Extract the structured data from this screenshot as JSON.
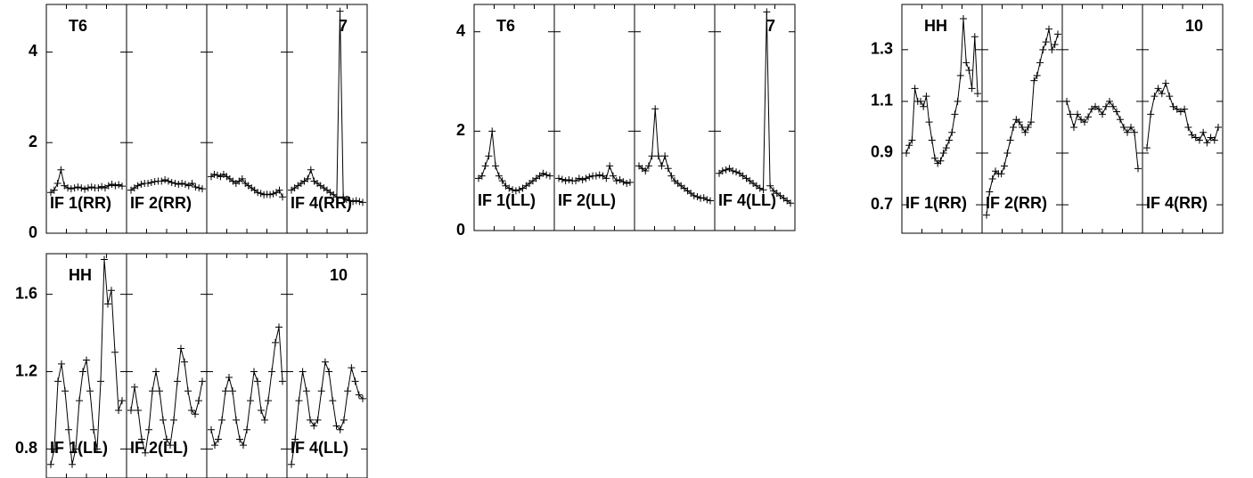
{
  "chart_data": [
    {
      "type": "line",
      "color": "#000000",
      "label_left": "T6",
      "label_right": "7",
      "ylim": [
        0,
        5.05
      ],
      "yticks": [
        0,
        2,
        4
      ],
      "panels": [
        {
          "label": "IF 1(RR)",
          "values": [
            0.9,
            0.95,
            1.1,
            1.4,
            1.05,
            1.0,
            0.98,
            1.0,
            1.02,
            1.0,
            0.97,
            1.0,
            1.02,
            1.0,
            1.0,
            1.03,
            1.0,
            1.05,
            1.08,
            1.05,
            1.07,
            1.04
          ]
        },
        {
          "label": "IF 2(RR)",
          "values": [
            0.95,
            1.0,
            1.05,
            1.08,
            1.1,
            1.1,
            1.12,
            1.14,
            1.15,
            1.15,
            1.18,
            1.15,
            1.12,
            1.1,
            1.08,
            1.1,
            1.08,
            1.05,
            1.1,
            1.02,
            1.0,
            0.98
          ]
        },
        {
          "values": [
            1.25,
            1.3,
            1.28,
            1.25,
            1.3,
            1.25,
            1.2,
            1.15,
            1.1,
            1.15,
            1.2,
            1.1,
            1.05,
            1.0,
            0.95,
            0.9,
            0.88,
            0.85,
            0.86,
            0.85,
            0.87,
            0.9,
            0.95,
            0.8
          ]
        },
        {
          "label": "IF 4(RR)",
          "values": [
            0.95,
            1.0,
            1.05,
            1.1,
            1.15,
            1.2,
            1.4,
            1.15,
            1.1,
            1.05,
            1.0,
            0.95,
            0.9,
            0.85,
            0.8,
            4.9,
            0.8,
            0.75,
            0.72,
            0.7,
            0.72,
            0.7,
            0.68
          ]
        }
      ]
    },
    {
      "type": "line",
      "color": "#000000",
      "label_left": "T6",
      "label_right": "7",
      "ylim": [
        0,
        4.55
      ],
      "yticks": [
        0,
        2,
        4
      ],
      "panels": [
        {
          "label": "IF 1(LL)",
          "values": [
            1.05,
            1.1,
            1.3,
            1.5,
            2.0,
            1.3,
            1.1,
            1.0,
            0.9,
            0.85,
            0.82,
            0.8,
            0.82,
            0.85,
            0.9,
            0.95,
            1.0,
            1.05,
            1.1,
            1.15,
            1.12,
            1.1
          ]
        },
        {
          "label": "IF 2(LL)",
          "values": [
            1.05,
            1.03,
            1.0,
            1.02,
            1.0,
            1.0,
            1.05,
            1.02,
            1.05,
            1.08,
            1.1,
            1.1,
            1.12,
            1.1,
            1.05,
            1.3,
            1.1,
            1.0,
            1.02,
            0.98,
            0.95,
            0.97
          ]
        },
        {
          "values": [
            1.3,
            1.25,
            1.2,
            1.3,
            1.5,
            2.45,
            1.5,
            1.3,
            1.5,
            1.25,
            1.1,
            1.0,
            0.95,
            0.9,
            0.85,
            0.8,
            0.75,
            0.7,
            0.68,
            0.65,
            0.66,
            0.62,
            0.6
          ]
        },
        {
          "label": "IF 4(LL)",
          "values": [
            1.15,
            1.2,
            1.22,
            1.25,
            1.2,
            1.18,
            1.15,
            1.1,
            1.05,
            1.0,
            0.95,
            0.9,
            0.85,
            0.82,
            4.4,
            0.9,
            0.8,
            0.75,
            0.7,
            0.65,
            0.6,
            0.55
          ]
        }
      ]
    },
    {
      "type": "line",
      "color": "#000000",
      "label_left": "HH",
      "label_right": "10",
      "ylim": [
        0.59,
        1.475
      ],
      "yticks": [
        0.7,
        0.9,
        1.1,
        1.3
      ],
      "panels": [
        {
          "label": "IF 1(RR)",
          "values": [
            0.9,
            0.93,
            0.95,
            1.15,
            1.1,
            1.1,
            1.08,
            1.12,
            1.02,
            0.95,
            0.88,
            0.86,
            0.87,
            0.9,
            0.92,
            0.95,
            0.98,
            1.05,
            1.1,
            1.2,
            1.42,
            1.25,
            1.22,
            1.15,
            1.35,
            1.13
          ]
        },
        {
          "label": "IF 2(RR)",
          "values": [
            0.66,
            0.75,
            0.8,
            0.83,
            0.82,
            0.82,
            0.85,
            0.9,
            0.95,
            1.0,
            1.03,
            1.02,
            1.0,
            0.98,
            1.0,
            1.02,
            1.18,
            1.2,
            1.25,
            1.3,
            1.33,
            1.38,
            1.3,
            1.32,
            1.36
          ]
        },
        {
          "values": [
            1.1,
            1.05,
            1.0,
            1.05,
            1.03,
            1.02,
            1.04,
            1.07,
            1.08,
            1.07,
            1.05,
            1.08,
            1.1,
            1.08,
            1.06,
            1.03,
            1.0,
            0.98,
            1.0,
            0.98,
            0.84
          ]
        },
        {
          "label": "IF 4(RR)",
          "values": [
            0.92,
            1.05,
            1.12,
            1.15,
            1.13,
            1.17,
            1.12,
            1.08,
            1.07,
            1.06,
            1.07,
            1.0,
            0.97,
            0.96,
            0.95,
            0.98,
            0.94,
            0.96,
            0.95,
            1.0
          ]
        }
      ]
    },
    {
      "type": "line",
      "color": "#000000",
      "label_left": "HH",
      "label_right": "10",
      "ylim": [
        0.65,
        1.81
      ],
      "yticks": [
        0.8,
        1.2,
        1.6
      ],
      "panels": [
        {
          "label": "IF 1(LL)",
          "values": [
            0.72,
            0.8,
            1.15,
            1.24,
            1.1,
            0.9,
            0.72,
            0.8,
            1.05,
            1.2,
            1.26,
            1.1,
            0.9,
            0.8,
            1.15,
            1.78,
            1.55,
            1.62,
            1.3,
            1.0,
            1.05
          ]
        },
        {
          "label": "IF 2(LL)",
          "values": [
            1.0,
            1.12,
            1.0,
            0.85,
            0.78,
            0.9,
            1.1,
            1.2,
            1.1,
            0.95,
            0.85,
            0.82,
            0.95,
            1.15,
            1.32,
            1.25,
            1.1,
            1.0,
            0.98,
            1.05,
            1.15
          ]
        },
        {
          "values": [
            0.9,
            0.82,
            0.85,
            0.95,
            1.1,
            1.17,
            1.1,
            0.95,
            0.85,
            0.82,
            0.9,
            1.05,
            1.2,
            1.15,
            1.0,
            0.95,
            1.05,
            1.2,
            1.35,
            1.43,
            1.15
          ]
        },
        {
          "label": "IF 4(LL)",
          "values": [
            0.72,
            0.85,
            1.05,
            1.2,
            1.1,
            0.95,
            0.92,
            0.95,
            1.1,
            1.25,
            1.2,
            1.05,
            0.92,
            0.9,
            0.95,
            1.1,
            1.22,
            1.15,
            1.08,
            1.06
          ]
        }
      ]
    }
  ]
}
